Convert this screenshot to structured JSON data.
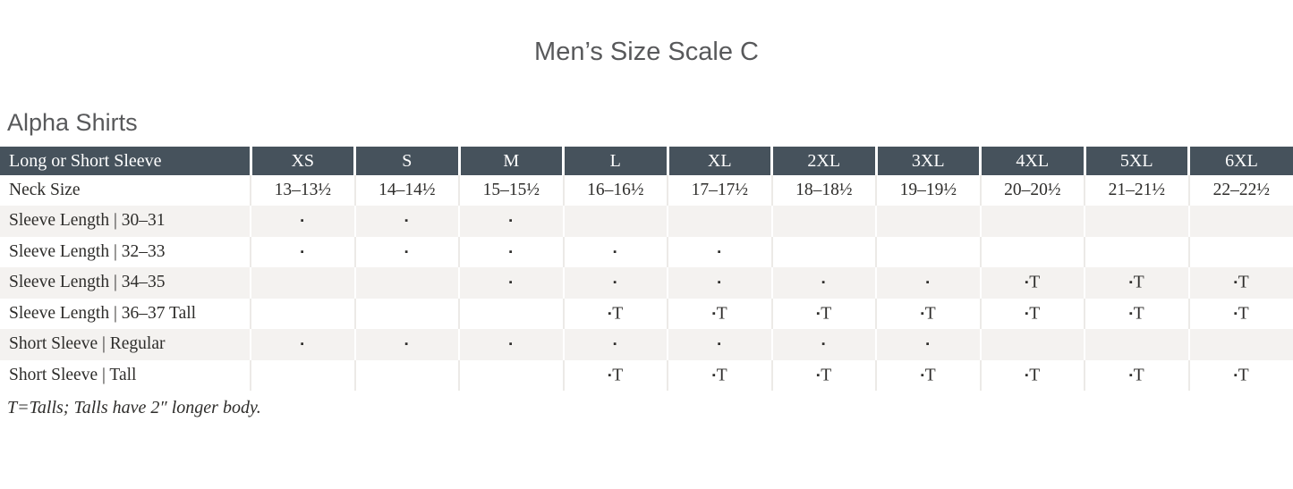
{
  "page": {
    "title": "Men’s Size Scale C",
    "section_heading": "Alpha Shirts",
    "footnote": "T=Talls; Talls have 2″ longer body."
  },
  "table": {
    "header": {
      "label_column": "Long or Short Sleeve",
      "sizes": [
        "XS",
        "S",
        "M",
        "L",
        "XL",
        "2XL",
        "3XL",
        "4XL",
        "5XL",
        "6XL"
      ]
    },
    "rows": [
      {
        "label": "Neck Size",
        "cells": [
          "13–13½",
          "14–14½",
          "15–15½",
          "16–16½",
          "17–17½",
          "18–18½",
          "19–19½",
          "20–20½",
          "21–21½",
          "22–22½"
        ]
      },
      {
        "label": "Sleeve Length  |  30–31",
        "cells": [
          "▪",
          "▪",
          "▪",
          "",
          "",
          "",
          "",
          "",
          "",
          ""
        ]
      },
      {
        "label": "Sleeve Length  |  32–33",
        "cells": [
          "▪",
          "▪",
          "▪",
          "▪",
          "▪",
          "",
          "",
          "",
          "",
          ""
        ]
      },
      {
        "label": "Sleeve Length  |  34–35",
        "cells": [
          "",
          "",
          "▪",
          "▪",
          "▪",
          "▪",
          "▪",
          "▪T",
          "▪T",
          "▪T"
        ]
      },
      {
        "label": "Sleeve Length  |  36–37 Tall",
        "cells": [
          "",
          "",
          "",
          "▪T",
          "▪T",
          "▪T",
          "▪T",
          "▪T",
          "▪T",
          "▪T"
        ]
      },
      {
        "label": "Short Sleeve  |  Regular",
        "cells": [
          "▪",
          "▪",
          "▪",
          "▪",
          "▪",
          "▪",
          "▪",
          "",
          "",
          ""
        ]
      },
      {
        "label": "Short Sleeve  |  Tall",
        "cells": [
          "",
          "",
          "",
          "▪T",
          "▪T",
          "▪T",
          "▪T",
          "▪T",
          "▪T",
          "▪T"
        ]
      }
    ]
  },
  "colors": {
    "header_bg": "#46525c",
    "header_text": "#ffffff",
    "row_stripe": "#f4f2f0",
    "gridline": "#eceae7",
    "body_text": "#2e2d2b",
    "heading_text": "#58595b"
  }
}
